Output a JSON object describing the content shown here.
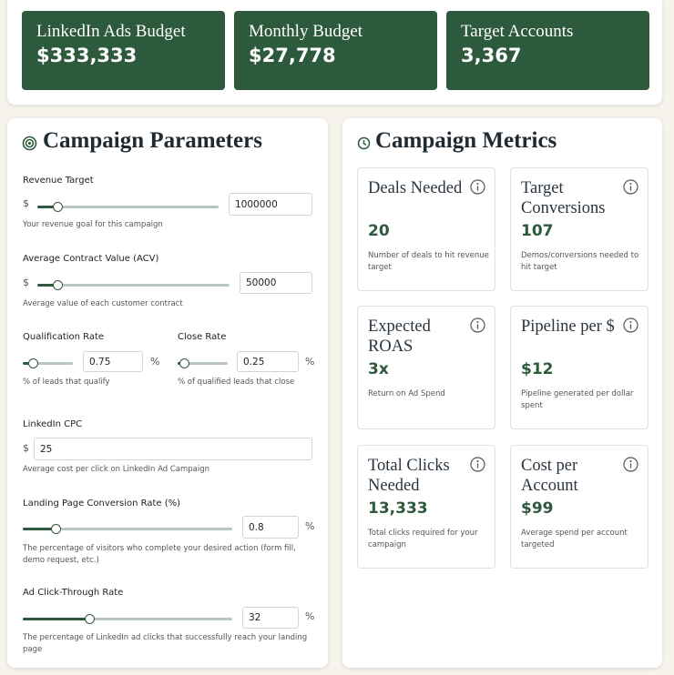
{
  "summary": [
    {
      "label": "LinkedIn Ads Budget",
      "value": "$333,333"
    },
    {
      "label": "Monthly Budget",
      "value": "$27,778"
    },
    {
      "label": "Target Accounts",
      "value": "3,367"
    }
  ],
  "parameters": {
    "title": "Campaign Parameters",
    "revenue_target": {
      "label": "Revenue Target",
      "prefix": "$",
      "value": "1000000",
      "help": "Your revenue goal for this campaign"
    },
    "acv": {
      "label": "Average Contract Value (ACV)",
      "prefix": "$",
      "value": "50000",
      "help": "Average value of each customer contract"
    },
    "qualification_rate": {
      "label": "Qualification Rate",
      "value": "0.75",
      "suffix": "%",
      "help": "% of leads that qualify"
    },
    "close_rate": {
      "label": "Close Rate",
      "value": "0.25",
      "suffix": "%",
      "help": "% of qualified leads that close"
    },
    "cpc": {
      "label": "LinkedIn CPC",
      "prefix": "$",
      "value": "25",
      "help": "Average cost per click on LinkedIn Ad Campaign"
    },
    "landing_conversion": {
      "label": "Landing Page Conversion Rate (%)",
      "value": "0.8",
      "suffix": "%",
      "help": "The percentage of visitors who complete your desired action (form fill, demo request, etc.)"
    },
    "ctr": {
      "label": "Ad Click-Through Rate",
      "value": "32",
      "suffix": "%",
      "help": "The percentage of LinkedIn ad clicks that successfully reach your landing page"
    }
  },
  "metrics": {
    "title": "Campaign Metrics",
    "cards": [
      {
        "label": "Deals Needed",
        "value": "20",
        "description": "Number of deals to hit revenue target"
      },
      {
        "label": "Target Conversions",
        "value": "107",
        "description": "Demos/conversions needed to hit target"
      },
      {
        "label": "Expected ROAS",
        "value": "3x",
        "description": "Return on Ad Spend"
      },
      {
        "label": "Pipeline per $",
        "value": "$12",
        "description": "Pipeline generated per dollar spent"
      },
      {
        "label": "Total Clicks Needed",
        "value": "13,333",
        "description": "Total clicks required for your campaign"
      },
      {
        "label": "Cost per Account",
        "value": "$99",
        "description": "Average spend per account targeted"
      }
    ]
  }
}
